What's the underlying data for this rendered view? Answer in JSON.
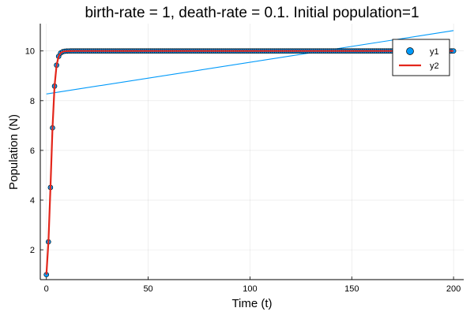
{
  "chart_data": {
    "type": "scatter",
    "title": "birth-rate = 1, death-rate = 0.1. Initial population=1",
    "xlabel": "Time (t)",
    "ylabel": "Population (N)",
    "xlim": [
      -3,
      205
    ],
    "ylim": [
      0.8,
      11.1
    ],
    "xticks": [
      0,
      50,
      100,
      150,
      200
    ],
    "yticks": [
      2,
      4,
      6,
      8,
      10
    ],
    "grid": true,
    "legend": "top-right",
    "model": {
      "birth_rate": 1,
      "death_rate": 0.1,
      "initial_population": 1,
      "t_start": 0,
      "t_end": 200,
      "t_step": 1
    },
    "series": [
      {
        "name": "y1",
        "kind": "scatter",
        "color": "#009AFA",
        "edge_color": "#000000",
        "sample_points": [
          [
            0,
            1.0
          ],
          [
            2,
            2.63
          ],
          [
            5,
            4.5
          ],
          [
            10,
            7.03
          ],
          [
            15,
            8.37
          ],
          [
            20,
            9.17
          ],
          [
            30,
            9.73
          ],
          [
            40,
            9.91
          ],
          [
            50,
            9.97
          ],
          [
            100,
            10.0
          ],
          [
            200,
            10.0
          ]
        ]
      },
      {
        "name": "y2",
        "kind": "line",
        "color": "#E3261B",
        "x_range": [
          0,
          200
        ]
      },
      {
        "name": "",
        "kind": "line",
        "color": "#009AFA",
        "points": [
          [
            0,
            8.27
          ],
          [
            200,
            10.82
          ]
        ]
      }
    ]
  }
}
